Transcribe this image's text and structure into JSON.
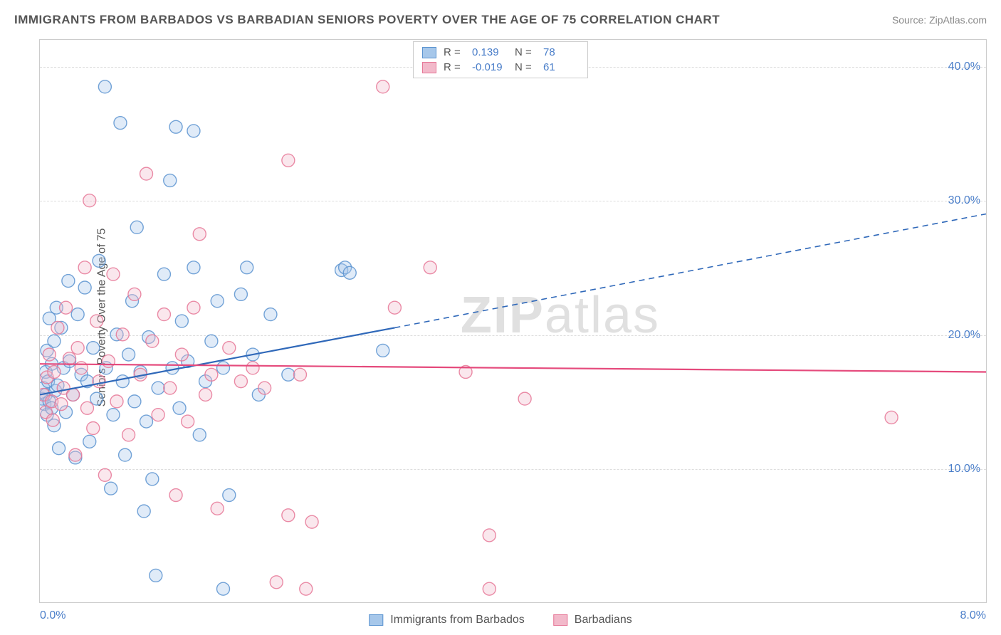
{
  "title": "IMMIGRANTS FROM BARBADOS VS BARBADIAN SENIORS POVERTY OVER THE AGE OF 75 CORRELATION CHART",
  "source": "Source: ZipAtlas.com",
  "y_axis_title": "Seniors Poverty Over the Age of 75",
  "watermark": {
    "bold": "ZIP",
    "light": "atlas"
  },
  "chart": {
    "type": "scatter",
    "xlim": [
      0.0,
      8.0
    ],
    "ylim": [
      0.0,
      42.0
    ],
    "y_ticks": [
      10.0,
      20.0,
      30.0,
      40.0
    ],
    "y_tick_labels": [
      "10.0%",
      "20.0%",
      "30.0%",
      "40.0%"
    ],
    "x_tick_left": "0.0%",
    "x_tick_right": "8.0%",
    "grid_color": "#dddddd",
    "border_color": "#cccccc",
    "marker_radius": 9,
    "marker_fill_opacity": 0.35,
    "marker_stroke_opacity": 0.85,
    "line_width": 2.2,
    "series": [
      {
        "name": "Immigrants from Barbados",
        "fill": "#a6c7ea",
        "stroke": "#5a93d0",
        "line_color": "#2f68b9",
        "r": 0.139,
        "n": 78,
        "trend": {
          "x0": 0.0,
          "y0": 15.5,
          "x1": 3.0,
          "y1": 20.5,
          "x2": 8.0,
          "y2": 29.0
        },
        "points": [
          [
            0.02,
            15.2
          ],
          [
            0.03,
            16.0
          ],
          [
            0.04,
            14.8
          ],
          [
            0.05,
            15.5
          ],
          [
            0.05,
            17.2
          ],
          [
            0.06,
            18.8
          ],
          [
            0.06,
            14.0
          ],
          [
            0.07,
            16.5
          ],
          [
            0.08,
            15.0
          ],
          [
            0.08,
            21.2
          ],
          [
            0.1,
            14.5
          ],
          [
            0.1,
            17.8
          ],
          [
            0.12,
            13.2
          ],
          [
            0.12,
            19.5
          ],
          [
            0.13,
            15.8
          ],
          [
            0.14,
            22.0
          ],
          [
            0.15,
            16.2
          ],
          [
            0.16,
            11.5
          ],
          [
            0.18,
            20.5
          ],
          [
            0.2,
            17.5
          ],
          [
            0.22,
            14.2
          ],
          [
            0.24,
            24.0
          ],
          [
            0.25,
            18.0
          ],
          [
            0.28,
            15.5
          ],
          [
            0.3,
            10.8
          ],
          [
            0.32,
            21.5
          ],
          [
            0.35,
            17.0
          ],
          [
            0.38,
            23.5
          ],
          [
            0.4,
            16.5
          ],
          [
            0.42,
            12.0
          ],
          [
            0.45,
            19.0
          ],
          [
            0.48,
            15.2
          ],
          [
            0.5,
            25.5
          ],
          [
            0.55,
            38.5
          ],
          [
            0.56,
            17.5
          ],
          [
            0.6,
            8.5
          ],
          [
            0.62,
            14.0
          ],
          [
            0.65,
            20.0
          ],
          [
            0.68,
            35.8
          ],
          [
            0.7,
            16.5
          ],
          [
            0.72,
            11.0
          ],
          [
            0.75,
            18.5
          ],
          [
            0.78,
            22.5
          ],
          [
            0.8,
            15.0
          ],
          [
            0.82,
            28.0
          ],
          [
            0.85,
            17.2
          ],
          [
            0.88,
            6.8
          ],
          [
            0.9,
            13.5
          ],
          [
            0.92,
            19.8
          ],
          [
            0.95,
            9.2
          ],
          [
            0.98,
            2.0
          ],
          [
            1.0,
            16.0
          ],
          [
            1.05,
            24.5
          ],
          [
            1.1,
            31.5
          ],
          [
            1.12,
            17.5
          ],
          [
            1.15,
            35.5
          ],
          [
            1.18,
            14.5
          ],
          [
            1.2,
            21.0
          ],
          [
            1.25,
            18.0
          ],
          [
            1.3,
            25.0
          ],
          [
            1.3,
            35.2
          ],
          [
            1.35,
            12.5
          ],
          [
            1.4,
            16.5
          ],
          [
            1.45,
            19.5
          ],
          [
            1.5,
            22.5
          ],
          [
            1.55,
            1.0
          ],
          [
            1.55,
            17.5
          ],
          [
            1.6,
            8.0
          ],
          [
            1.7,
            23.0
          ],
          [
            1.75,
            25.0
          ],
          [
            1.8,
            18.5
          ],
          [
            1.85,
            15.5
          ],
          [
            1.95,
            21.5
          ],
          [
            2.1,
            17.0
          ],
          [
            2.55,
            24.8
          ],
          [
            2.58,
            25.0
          ],
          [
            2.62,
            24.6
          ],
          [
            2.9,
            18.8
          ]
        ]
      },
      {
        "name": "Barbadians",
        "fill": "#f2b9ca",
        "stroke": "#e67797",
        "line_color": "#e54a7c",
        "r": -0.019,
        "n": 61,
        "trend": {
          "x0": 0.0,
          "y0": 17.8,
          "x1": 8.0,
          "y1": 17.2,
          "x2": 8.0,
          "y2": 17.2
        },
        "points": [
          [
            0.03,
            15.5
          ],
          [
            0.05,
            14.2
          ],
          [
            0.06,
            16.8
          ],
          [
            0.08,
            18.5
          ],
          [
            0.1,
            15.0
          ],
          [
            0.11,
            13.6
          ],
          [
            0.12,
            17.2
          ],
          [
            0.15,
            20.5
          ],
          [
            0.18,
            14.8
          ],
          [
            0.2,
            16.0
          ],
          [
            0.22,
            22.0
          ],
          [
            0.25,
            18.2
          ],
          [
            0.28,
            15.5
          ],
          [
            0.3,
            11.0
          ],
          [
            0.32,
            19.0
          ],
          [
            0.35,
            17.5
          ],
          [
            0.38,
            25.0
          ],
          [
            0.4,
            14.5
          ],
          [
            0.42,
            30.0
          ],
          [
            0.45,
            13.0
          ],
          [
            0.48,
            21.0
          ],
          [
            0.5,
            16.5
          ],
          [
            0.55,
            9.5
          ],
          [
            0.58,
            18.0
          ],
          [
            0.62,
            24.5
          ],
          [
            0.65,
            15.0
          ],
          [
            0.7,
            20.0
          ],
          [
            0.75,
            12.5
          ],
          [
            0.8,
            23.0
          ],
          [
            0.85,
            17.0
          ],
          [
            0.9,
            32.0
          ],
          [
            0.95,
            19.5
          ],
          [
            1.0,
            14.0
          ],
          [
            1.05,
            21.5
          ],
          [
            1.1,
            16.0
          ],
          [
            1.15,
            8.0
          ],
          [
            1.2,
            18.5
          ],
          [
            1.25,
            13.5
          ],
          [
            1.3,
            22.0
          ],
          [
            1.35,
            27.5
          ],
          [
            1.4,
            15.5
          ],
          [
            1.45,
            17.0
          ],
          [
            1.5,
            7.0
          ],
          [
            1.6,
            19.0
          ],
          [
            1.7,
            16.5
          ],
          [
            1.8,
            17.5
          ],
          [
            1.9,
            16.0
          ],
          [
            2.0,
            1.5
          ],
          [
            2.1,
            33.0
          ],
          [
            2.1,
            6.5
          ],
          [
            2.2,
            17.0
          ],
          [
            2.25,
            1.0
          ],
          [
            2.3,
            6.0
          ],
          [
            2.9,
            38.5
          ],
          [
            3.0,
            22.0
          ],
          [
            3.3,
            25.0
          ],
          [
            3.6,
            17.2
          ],
          [
            3.8,
            5.0
          ],
          [
            3.8,
            1.0
          ],
          [
            4.1,
            15.2
          ],
          [
            7.2,
            13.8
          ]
        ]
      }
    ]
  },
  "legend_top": {
    "r_label": "R  =",
    "n_label": "N  ="
  },
  "legend_bottom": [
    {
      "label": "Immigrants from Barbados",
      "fill": "#a6c7ea",
      "stroke": "#5a93d0"
    },
    {
      "label": "Barbadians",
      "fill": "#f2b9ca",
      "stroke": "#e67797"
    }
  ]
}
